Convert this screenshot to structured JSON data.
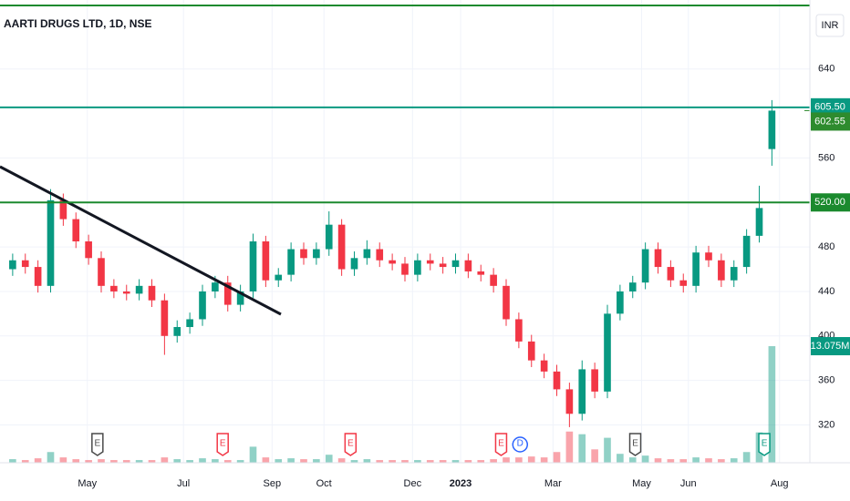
{
  "chart_data": {
    "type": "candlestick",
    "title": "AARTI DRUGS LTD, 1D, NSE",
    "currency": "INR",
    "open": [
      460,
      468,
      462,
      445,
      522,
      505,
      485,
      470,
      445,
      440,
      438,
      445,
      432,
      400,
      408,
      415,
      440,
      448,
      428,
      440,
      485,
      450,
      455,
      478,
      470,
      478,
      500,
      460,
      470,
      478,
      468,
      465,
      455,
      468,
      465,
      462,
      468,
      458,
      455,
      445,
      415,
      395,
      378,
      368,
      352,
      330,
      370,
      350,
      420,
      440,
      448,
      478,
      462,
      450,
      445,
      475,
      468,
      450,
      462,
      490,
      568
    ],
    "high": [
      474,
      474,
      468,
      532,
      528,
      511,
      491,
      476,
      451,
      446,
      451,
      451,
      438,
      414,
      421,
      446,
      454,
      454,
      446,
      492,
      490,
      461,
      484,
      484,
      484,
      512,
      505,
      476,
      486,
      484,
      474,
      471,
      474,
      474,
      471,
      474,
      474,
      464,
      461,
      451,
      421,
      401,
      384,
      374,
      358,
      378,
      376,
      428,
      446,
      454,
      484,
      484,
      468,
      456,
      481,
      481,
      474,
      468,
      496,
      535,
      612
    ],
    "low": [
      454,
      456,
      439,
      439,
      499,
      479,
      464,
      439,
      434,
      432,
      432,
      426,
      383,
      394,
      402,
      409,
      434,
      422,
      422,
      434,
      444,
      444,
      449,
      464,
      464,
      472,
      454,
      454,
      464,
      462,
      459,
      449,
      449,
      459,
      456,
      456,
      452,
      449,
      439,
      409,
      389,
      372,
      362,
      346,
      318,
      324,
      344,
      344,
      414,
      434,
      442,
      456,
      444,
      439,
      439,
      462,
      444,
      444,
      456,
      484,
      553
    ],
    "close": [
      468,
      462,
      445,
      522,
      505,
      485,
      470,
      445,
      440,
      438,
      445,
      432,
      400,
      408,
      415,
      440,
      448,
      428,
      440,
      485,
      450,
      455,
      478,
      470,
      478,
      500,
      460,
      470,
      478,
      468,
      465,
      455,
      468,
      465,
      462,
      468,
      458,
      455,
      445,
      415,
      395,
      378,
      368,
      352,
      330,
      370,
      350,
      420,
      440,
      448,
      478,
      462,
      450,
      445,
      475,
      468,
      450,
      462,
      490,
      515,
      602.55
    ],
    "up_color": "#089981",
    "down_color": "#f23645",
    "volume": {
      "values": [
        0.4,
        0.3,
        0.5,
        1.2,
        0.6,
        0.4,
        0.3,
        0.4,
        0.3,
        0.3,
        0.3,
        0.3,
        0.6,
        0.4,
        0.3,
        0.5,
        0.4,
        0.3,
        0.3,
        1.8,
        0.6,
        0.4,
        0.5,
        0.4,
        0.4,
        0.9,
        0.5,
        0.3,
        0.4,
        0.3,
        0.3,
        0.3,
        0.3,
        0.3,
        0.3,
        0.3,
        0.3,
        0.3,
        0.4,
        0.6,
        0.6,
        0.7,
        0.6,
        1.2,
        3.5,
        3.2,
        1.5,
        2.8,
        1.0,
        0.6,
        0.8,
        0.5,
        0.4,
        0.4,
        0.6,
        0.5,
        0.4,
        0.5,
        1.2,
        3.4,
        13.075
      ],
      "value_labels": [
        null,
        null,
        null,
        null,
        null,
        null,
        null,
        null,
        null,
        null,
        null,
        null,
        null,
        null,
        null,
        null,
        null,
        null,
        null,
        null,
        null,
        null,
        null,
        null,
        null,
        null,
        null,
        null,
        null,
        null,
        null,
        null,
        null,
        null,
        null,
        null,
        null,
        null,
        null,
        null,
        null,
        null,
        null,
        null,
        null,
        null,
        null,
        null,
        null,
        null,
        null,
        null,
        null,
        null,
        null,
        null,
        null,
        null,
        null,
        null,
        "13.075M"
      ],
      "ylim": [
        0,
        51.9
      ]
    },
    "ylim": [
      286,
      702
    ],
    "yticks": [
      320,
      360,
      400,
      440,
      480,
      560,
      640
    ],
    "xlim": [
      -1,
      63
    ],
    "xticks": [
      {
        "value": 5.9,
        "label": "May"
      },
      {
        "value": 13.5,
        "label": "Jul"
      },
      {
        "value": 20.5,
        "label": "Sep"
      },
      {
        "value": 24.6,
        "label": "Oct"
      },
      {
        "value": 31.6,
        "label": "Dec"
      },
      {
        "value": 35.4,
        "label": "2023"
      },
      {
        "value": 42.7,
        "label": "Mar"
      },
      {
        "value": 49.7,
        "label": "May"
      },
      {
        "value": 53.4,
        "label": "Jun"
      },
      {
        "value": 60.6,
        "label": "Aug"
      }
    ],
    "horizontal_lines": [
      {
        "value": 605.5,
        "label": "605.50",
        "color": "#089981"
      },
      {
        "value": 520,
        "label": "520.00",
        "color": "#1b8a2e"
      }
    ],
    "last_price": {
      "value": 602.55,
      "label": "602.55",
      "color": "#2e8b2e"
    },
    "events": [
      {
        "label": "E",
        "x": 6.7,
        "color": "#4a4a4a"
      },
      {
        "label": "E",
        "x": 16.6,
        "color": "#f23645"
      },
      {
        "label": "E",
        "x": 26.7,
        "color": "#f23645"
      },
      {
        "label": "E",
        "x": 38.6,
        "color": "#f23645"
      },
      {
        "label": "D",
        "x": 40.1,
        "color": "#2962ff"
      },
      {
        "label": "E",
        "x": 49.2,
        "color": "#4a4a4a"
      },
      {
        "label": "E",
        "x": 59.4,
        "color": "#089981"
      }
    ],
    "grid": true
  }
}
